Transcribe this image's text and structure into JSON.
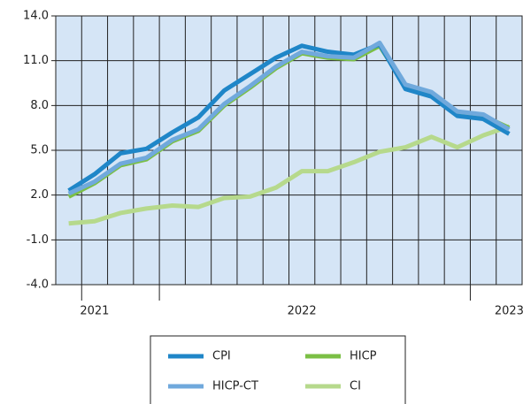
{
  "chart_data": {
    "type": "line",
    "categories": [
      null,
      "2021",
      null,
      null,
      null,
      null,
      null,
      null,
      null,
      "2022",
      null,
      null,
      null,
      null,
      null,
      null,
      null,
      "2023"
    ],
    "series": [
      {
        "name": "CPI",
        "color": "#1f86c8",
        "values": [
          2.3,
          3.4,
          4.8,
          5.1,
          6.2,
          7.2,
          9.0,
          10.1,
          11.2,
          12.0,
          11.6,
          11.4,
          12.1,
          9.1,
          8.6,
          7.3,
          7.1,
          6.1
        ]
      },
      {
        "name": "HICP",
        "color": "#7bbf45",
        "values": [
          1.9,
          2.8,
          4.0,
          4.4,
          5.6,
          6.3,
          8.0,
          9.2,
          10.5,
          11.5,
          11.2,
          11.1,
          12.0,
          9.3,
          8.8,
          7.5,
          7.3,
          6.5
        ]
      },
      {
        "name": "HICP-CT",
        "color": "#70a9dc",
        "values": [
          2.1,
          2.9,
          4.1,
          4.5,
          5.7,
          6.4,
          8.1,
          9.3,
          10.6,
          11.6,
          11.3,
          11.2,
          12.2,
          9.4,
          8.9,
          7.6,
          7.4,
          6.4
        ]
      },
      {
        "name": "CI",
        "color": "#b6d98c",
        "values": [
          0.1,
          0.25,
          0.8,
          1.1,
          1.3,
          1.2,
          1.8,
          1.9,
          2.5,
          3.6,
          3.6,
          4.2,
          4.9,
          5.2,
          5.9,
          5.2,
          6.0,
          6.6
        ]
      }
    ],
    "ylim": [
      -4,
      14
    ],
    "yticks": [
      {
        "value": -4,
        "label": "-4.0"
      },
      {
        "value": -1,
        "label": "-1.0"
      },
      {
        "value": 2,
        "label": "2.0"
      },
      {
        "value": 5,
        "label": "5.0"
      },
      {
        "value": 8,
        "label": "8.0"
      },
      {
        "value": 11,
        "label": "11.0"
      },
      {
        "value": 14,
        "label": "14.0"
      }
    ],
    "grid": true
  }
}
